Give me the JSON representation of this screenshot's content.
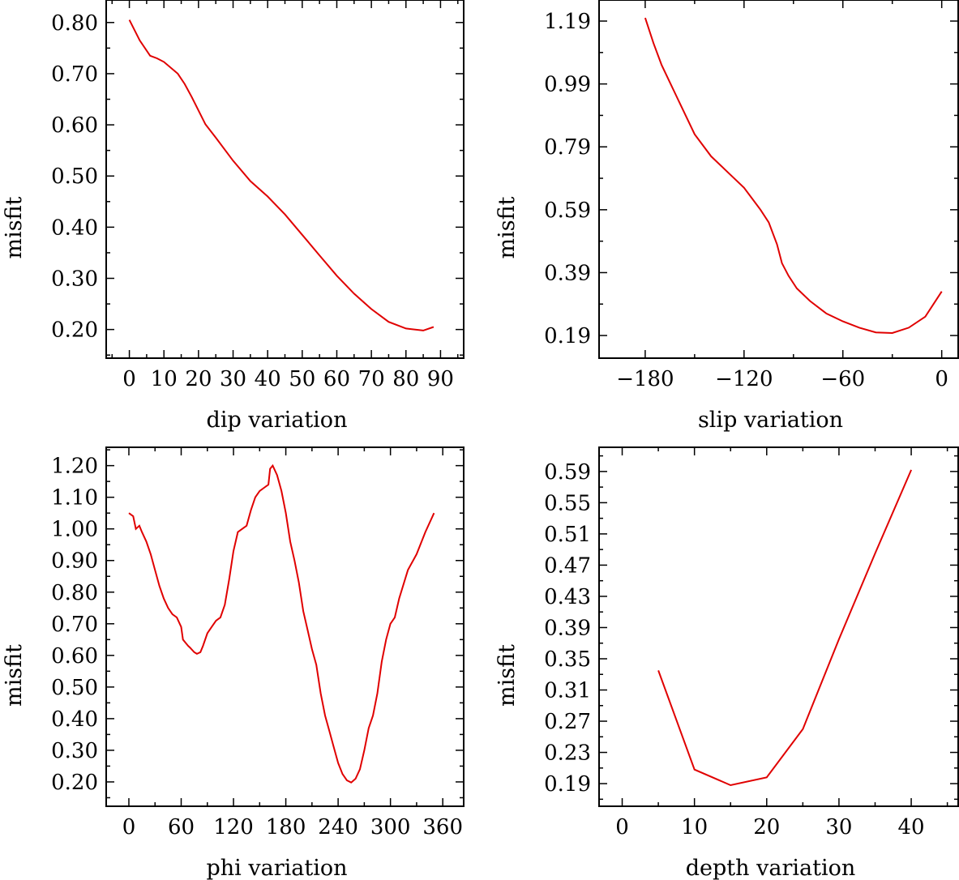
{
  "colors": {
    "series": "#e00000",
    "axis": "#000000",
    "background": "#ffffff"
  },
  "chart_data": [
    {
      "type": "line",
      "xlabel": "dip    variation",
      "ylabel": "misfit",
      "xlim": [
        -6.7,
        96.7
      ],
      "ylim": [
        0.144,
        0.844
      ],
      "xticks": [
        0,
        10,
        20,
        30,
        40,
        50,
        60,
        70,
        80,
        90
      ],
      "xtick_labels": [
        "0",
        "10",
        "20",
        "30",
        "40",
        "50",
        "60",
        "70",
        "80",
        "90"
      ],
      "yticks": [
        0.2,
        0.3,
        0.4,
        0.5,
        0.6,
        0.7,
        0.8
      ],
      "ytick_labels": [
        "0.20",
        "0.30",
        "0.40",
        "0.50",
        "0.60",
        "0.70",
        "0.80"
      ],
      "series": [
        {
          "x": [
            0,
            3,
            6,
            8,
            10,
            14,
            16,
            18,
            20,
            22,
            25,
            30,
            35,
            40,
            45,
            50,
            55,
            60,
            65,
            70,
            75,
            80,
            85,
            88
          ],
          "y": [
            0.805,
            0.765,
            0.735,
            0.73,
            0.723,
            0.7,
            0.68,
            0.655,
            0.628,
            0.601,
            0.575,
            0.53,
            0.49,
            0.46,
            0.425,
            0.385,
            0.345,
            0.305,
            0.27,
            0.24,
            0.215,
            0.202,
            0.198,
            0.205
          ]
        }
      ]
    },
    {
      "type": "line",
      "xlabel": "slip    variation",
      "ylabel": "misfit",
      "xlim": [
        -208,
        10
      ],
      "ylim": [
        0.118,
        1.257
      ],
      "xticks": [
        -180,
        -120,
        -60,
        0
      ],
      "xtick_labels": [
        "−180",
        "−120",
        "−60",
        "0"
      ],
      "yticks": [
        0.19,
        0.39,
        0.59,
        0.79,
        0.99,
        1.19
      ],
      "ytick_labels": [
        "0.19",
        "0.39",
        "0.59",
        "0.79",
        "0.99",
        "1.19"
      ],
      "series": [
        {
          "x": [
            -180,
            -175,
            -170,
            -160,
            -150,
            -140,
            -130,
            -120,
            -110,
            -105,
            -100,
            -97,
            -93,
            -88,
            -80,
            -70,
            -60,
            -50,
            -40,
            -30,
            -20,
            -10,
            -5,
            0
          ],
          "y": [
            1.2,
            1.12,
            1.05,
            0.94,
            0.83,
            0.76,
            0.71,
            0.66,
            0.59,
            0.55,
            0.48,
            0.42,
            0.38,
            0.34,
            0.3,
            0.26,
            0.235,
            0.215,
            0.2,
            0.198,
            0.215,
            0.25,
            0.29,
            0.33
          ]
        }
      ]
    },
    {
      "type": "line",
      "xlabel": "phi    variation",
      "ylabel": "misfit",
      "xlim": [
        -26,
        384
      ],
      "ylim": [
        0.123,
        1.258
      ],
      "xticks": [
        0,
        60,
        120,
        180,
        240,
        300,
        360
      ],
      "xtick_labels": [
        "0",
        "60",
        "120",
        "180",
        "240",
        "300",
        "360"
      ],
      "yticks": [
        0.2,
        0.3,
        0.4,
        0.5,
        0.6,
        0.7,
        0.8,
        0.9,
        1.0,
        1.1,
        1.2
      ],
      "ytick_labels": [
        "0.20",
        "0.30",
        "0.40",
        "0.50",
        "0.60",
        "0.70",
        "0.80",
        "0.90",
        "1.00",
        "1.10",
        "1.20"
      ],
      "series": [
        {
          "x": [
            0,
            5,
            8,
            12,
            15,
            20,
            25,
            30,
            35,
            40,
            45,
            50,
            55,
            60,
            62,
            65,
            68,
            70,
            75,
            78,
            82,
            85,
            90,
            95,
            100,
            105,
            110,
            115,
            120,
            125,
            130,
            135,
            140,
            145,
            150,
            155,
            160,
            162,
            165,
            170,
            175,
            180,
            185,
            190,
            195,
            200,
            205,
            210,
            215,
            220,
            225,
            230,
            235,
            240,
            245,
            250,
            255,
            260,
            265,
            270,
            275,
            280,
            285,
            290,
            295,
            300,
            305,
            310,
            320,
            330,
            340,
            350
          ],
          "y": [
            1.05,
            1.04,
            1.0,
            1.01,
            0.99,
            0.96,
            0.92,
            0.87,
            0.82,
            0.78,
            0.75,
            0.73,
            0.72,
            0.69,
            0.65,
            0.64,
            0.63,
            0.625,
            0.61,
            0.605,
            0.61,
            0.63,
            0.67,
            0.69,
            0.71,
            0.72,
            0.76,
            0.84,
            0.93,
            0.99,
            1.0,
            1.01,
            1.06,
            1.1,
            1.12,
            1.13,
            1.14,
            1.19,
            1.2,
            1.17,
            1.12,
            1.05,
            0.96,
            0.9,
            0.83,
            0.74,
            0.68,
            0.62,
            0.57,
            0.48,
            0.41,
            0.36,
            0.31,
            0.26,
            0.225,
            0.205,
            0.198,
            0.21,
            0.24,
            0.3,
            0.37,
            0.41,
            0.48,
            0.58,
            0.65,
            0.7,
            0.72,
            0.78,
            0.87,
            0.92,
            0.99,
            1.05
          ]
        }
      ]
    },
    {
      "type": "line",
      "xlabel": "depth    variation",
      "ylabel": "misfit",
      "xlim": [
        -3.2,
        46.5
      ],
      "ylim": [
        0.161,
        0.621
      ],
      "xticks": [
        0,
        10,
        20,
        30,
        40
      ],
      "xtick_labels": [
        "0",
        "10",
        "20",
        "30",
        "40"
      ],
      "yticks": [
        0.19,
        0.23,
        0.27,
        0.31,
        0.35,
        0.39,
        0.43,
        0.47,
        0.51,
        0.55,
        0.59
      ],
      "ytick_labels": [
        "0.19",
        "0.23",
        "0.27",
        "0.31",
        "0.35",
        "0.39",
        "0.43",
        "0.47",
        "0.51",
        "0.55",
        "0.59"
      ],
      "series": [
        {
          "x": [
            5,
            10,
            15,
            20,
            25,
            30,
            35,
            40
          ],
          "y": [
            0.335,
            0.208,
            0.188,
            0.198,
            0.26,
            0.375,
            0.485,
            0.592
          ]
        }
      ]
    }
  ]
}
